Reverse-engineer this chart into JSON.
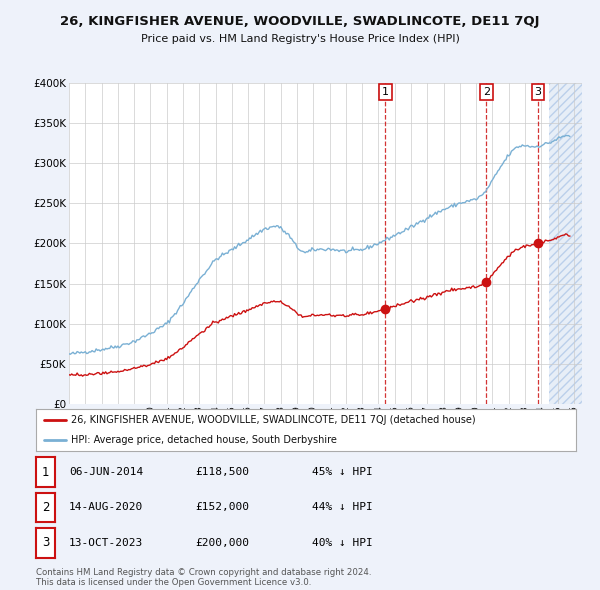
{
  "title": "26, KINGFISHER AVENUE, WOODVILLE, SWADLINCOTE, DE11 7QJ",
  "subtitle": "Price paid vs. HM Land Registry's House Price Index (HPI)",
  "legend_property": "26, KINGFISHER AVENUE, WOODVILLE, SWADLINCOTE, DE11 7QJ (detached house)",
  "legend_hpi": "HPI: Average price, detached house, South Derbyshire",
  "footer1": "Contains HM Land Registry data © Crown copyright and database right 2024.",
  "footer2": "This data is licensed under the Open Government Licence v3.0.",
  "table": [
    {
      "num": "1",
      "date": "06-JUN-2014",
      "price": "£118,500",
      "pct": "45% ↓ HPI",
      "year": 2014.43,
      "price_val": 118500
    },
    {
      "num": "2",
      "date": "14-AUG-2020",
      "price": "£152,000",
      "pct": "44% ↓ HPI",
      "year": 2020.62,
      "price_val": 152000
    },
    {
      "num": "3",
      "date": "13-OCT-2023",
      "price": "£200,000",
      "pct": "40% ↓ HPI",
      "year": 2023.79,
      "price_val": 200000
    }
  ],
  "ylim": [
    0,
    400000
  ],
  "xlim_start": 1995.0,
  "xlim_end": 2026.5,
  "hatch_start": 2024.5,
  "background_color": "#eef2fa",
  "plot_bg": "#ffffff",
  "grid_color": "#cccccc",
  "hpi_color": "#7ab0d4",
  "property_color": "#cc1111",
  "dashed_color": "#cc1111",
  "hatch_color": "#d0dff0"
}
